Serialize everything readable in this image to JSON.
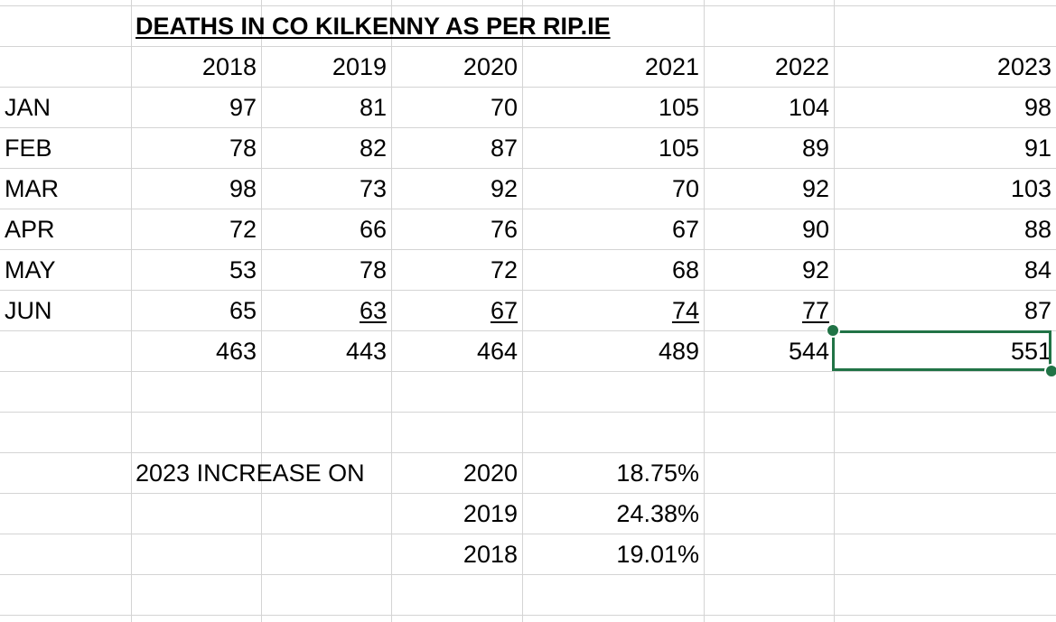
{
  "title": "DEATHS IN CO KILKENNY AS PER RIP.IE",
  "years": [
    "2018",
    "2019",
    "2020",
    "2021",
    "2022",
    "2023"
  ],
  "rows": [
    {
      "month": "JAN",
      "values": [
        "97",
        "81",
        "70",
        "105",
        "104",
        "98"
      ]
    },
    {
      "month": "FEB",
      "values": [
        "78",
        "82",
        "87",
        "105",
        "89",
        "91"
      ]
    },
    {
      "month": "MAR",
      "values": [
        "98",
        "73",
        "92",
        "70",
        "92",
        "103"
      ]
    },
    {
      "month": "APR",
      "values": [
        "72",
        "66",
        "76",
        "67",
        "90",
        "88"
      ]
    },
    {
      "month": "MAY",
      "values": [
        "53",
        "78",
        "72",
        "68",
        "92",
        "84"
      ]
    },
    {
      "month": "JUN",
      "values": [
        "65",
        "63",
        "67",
        "74",
        "77",
        "87"
      ]
    }
  ],
  "totals": [
    "463",
    "443",
    "464",
    "489",
    "544",
    "551"
  ],
  "increase": {
    "label": "2023 INCREASE ON",
    "items": [
      {
        "year": "2020",
        "pct": "18.75%"
      },
      {
        "year": "2019",
        "pct": "24.38%"
      },
      {
        "year": "2018",
        "pct": "19.01%"
      }
    ]
  },
  "selected_cell_value": "551",
  "colors": {
    "gridline": "#d4d4d4",
    "selection": "#217346"
  }
}
